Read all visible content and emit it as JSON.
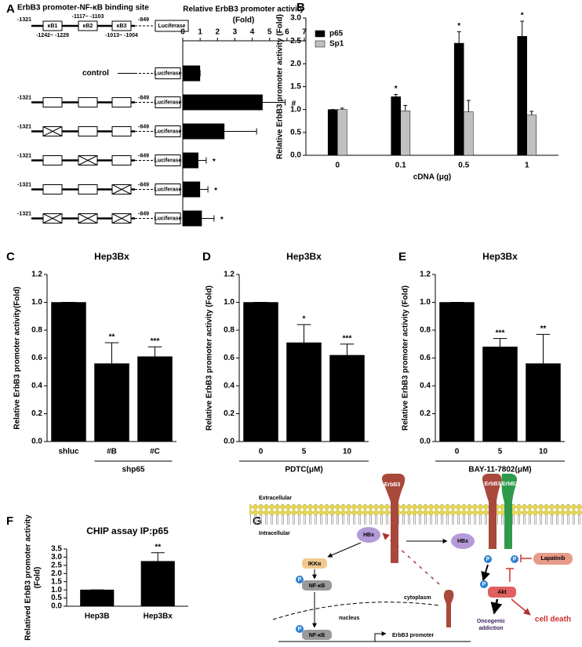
{
  "panels": [
    "A",
    "B",
    "C",
    "D",
    "E",
    "F",
    "G"
  ],
  "construct": {
    "title": "ErbB3 promoter-NF-κB binding site",
    "start": "-1321",
    "end": "-849",
    "sites": [
      "κB1",
      "κB2",
      "κB3"
    ],
    "site_ranges": [
      "-1242~ -1229",
      "-1117~ -1103",
      "-1013~ -1004"
    ],
    "reporter": "Luciferase"
  },
  "chart_data": [
    {
      "type": "hbar",
      "title": [
        "Relative ErbB3 promoter activity",
        "(Fold)"
      ],
      "categories": [
        "control",
        null,
        null,
        null,
        null,
        null
      ],
      "series": [
        {
          "color": "#000000",
          "values": [
            1.0,
            4.6,
            2.4,
            0.9,
            1.0,
            1.1
          ],
          "errors": [
            0,
            1.3,
            1.85,
            0.45,
            0.45,
            0.7
          ],
          "annotations": [
            null,
            "#",
            null,
            "*",
            "*",
            "*"
          ]
        }
      ],
      "xlim": [
        0,
        7
      ],
      "xticks": [
        0,
        1,
        2,
        3,
        4,
        5,
        6,
        7
      ]
    },
    {
      "type": "bar",
      "ylabel": [
        "Relative ErbB3 promoter activity (Fold)"
      ],
      "xlabel": "cDNA (μg)",
      "categories": [
        "0",
        "0.1",
        "0.5",
        "1"
      ],
      "series": [
        {
          "name": "p65",
          "color": "#000000",
          "values": [
            1.0,
            1.28,
            2.45,
            2.6
          ],
          "errors": [
            0,
            0.05,
            0.25,
            0.33
          ],
          "annotations": [
            null,
            "*",
            "*",
            "*"
          ]
        },
        {
          "name": "Sp1",
          "color": "#c0c0c0",
          "values": [
            1.0,
            0.97,
            0.95,
            0.88
          ],
          "errors": [
            0.03,
            0.12,
            0.25,
            0.08
          ]
        }
      ],
      "legend": "upper left",
      "ylim": [
        0,
        3
      ],
      "yticks": [
        {
          "value": 0,
          "label": "0.0"
        },
        {
          "value": 0.5,
          "label": "0.5"
        },
        {
          "value": 1,
          "label": "1.0"
        },
        {
          "value": 1.5,
          "label": "1.5"
        },
        {
          "value": 2,
          "label": "2.0"
        },
        {
          "value": 2.5,
          "label": "2.5"
        },
        {
          "value": 3,
          "label": "3.0"
        }
      ]
    },
    {
      "type": "bar",
      "title": "Hep3Bx",
      "ylabel": [
        "Relative ErbB3 promoter activity(Fold)"
      ],
      "group_label": "shp65",
      "categories": [
        "shluc",
        "#B",
        "#C"
      ],
      "series": [
        {
          "color": "#000000",
          "values": [
            1.0,
            0.56,
            0.61
          ],
          "errors": [
            0,
            0.15,
            0.07
          ],
          "annotations": [
            null,
            "**",
            "***"
          ]
        }
      ],
      "ylim": [
        0,
        1.2
      ],
      "yticks": [
        {
          "value": 0,
          "label": "0.0"
        },
        {
          "value": 0.2,
          "label": "0.2"
        },
        {
          "value": 0.4,
          "label": "0.4"
        },
        {
          "value": 0.6,
          "label": "0.6"
        },
        {
          "value": 0.8,
          "label": "0.8"
        },
        {
          "value": 1,
          "label": "1.0"
        },
        {
          "value": 1.2,
          "label": "1.2"
        }
      ]
    },
    {
      "type": "bar",
      "title": "Hep3Bx",
      "ylabel": [
        "Relative ErbB3 promoter activity (Fold)"
      ],
      "xlabel": "PDTC(μM)",
      "categories": [
        "0",
        "5",
        "10"
      ],
      "series": [
        {
          "color": "#000000",
          "values": [
            1.0,
            0.71,
            0.62
          ],
          "errors": [
            0,
            0.13,
            0.08
          ],
          "annotations": [
            null,
            "*",
            "***"
          ]
        }
      ],
      "ylim": [
        0,
        1.2
      ],
      "yticks": [
        {
          "value": 0,
          "label": "0.0"
        },
        {
          "value": 0.2,
          "label": "0.2"
        },
        {
          "value": 0.4,
          "label": "0.4"
        },
        {
          "value": 0.6,
          "label": "0.6"
        },
        {
          "value": 0.8,
          "label": "0.8"
        },
        {
          "value": 1,
          "label": "1.0"
        },
        {
          "value": 1.2,
          "label": "1.2"
        }
      ]
    },
    {
      "type": "bar",
      "title": "Hep3Bx",
      "ylabel": [
        "Relative ErbB3 promoter activity (Fold)"
      ],
      "xlabel": "BAY-11-7802(μM)",
      "categories": [
        "0",
        "5",
        "10"
      ],
      "series": [
        {
          "color": "#000000",
          "values": [
            1.0,
            0.68,
            0.56
          ],
          "errors": [
            0,
            0.06,
            0.21
          ],
          "annotations": [
            null,
            "***",
            "**"
          ]
        }
      ],
      "ylim": [
        0,
        1.2
      ],
      "yticks": [
        {
          "value": 0,
          "label": "0.0"
        },
        {
          "value": 0.2,
          "label": "0.2"
        },
        {
          "value": 0.4,
          "label": "0.4"
        },
        {
          "value": 0.6,
          "label": "0.6"
        },
        {
          "value": 0.8,
          "label": "0.8"
        },
        {
          "value": 1,
          "label": "1.0"
        },
        {
          "value": 1.2,
          "label": "1.2"
        }
      ]
    },
    {
      "type": "bar",
      "title": "CHIP assay IP:p65",
      "ylabel": [
        "Relatived ErbB3 promoter activity",
        "(Fold)"
      ],
      "categories": [
        "Hep3B",
        "Hep3Bx"
      ],
      "series": [
        {
          "color": "#000000",
          "values": [
            1.0,
            2.75
          ],
          "errors": [
            0,
            0.52
          ],
          "annotations": [
            null,
            "**"
          ]
        }
      ],
      "ylim": [
        0,
        3.5
      ],
      "yticks": [
        {
          "value": 0,
          "label": "0.0"
        },
        {
          "value": 0.5,
          "label": "0.5"
        },
        {
          "value": 1,
          "label": "1.0"
        },
        {
          "value": 1.5,
          "label": "1.5"
        },
        {
          "value": 2,
          "label": "2.0"
        },
        {
          "value": 2.5,
          "label": "2.5"
        },
        {
          "value": 3,
          "label": "3.0"
        },
        {
          "value": 3.5,
          "label": "3.5"
        }
      ]
    }
  ],
  "pathway": {
    "extracellular": "Extracellular",
    "intracellular": "Intracellular",
    "erbb3": "ErbB3",
    "erbb2": "ErbB2",
    "hbx": "HBx",
    "ikk": "IKKα",
    "nfkb": "NF-κB",
    "cytoplasm": "cytoplasm",
    "nucleus": "nucleus",
    "promoter": "ErbB3 promoter",
    "lapatinib": "Lapatinib",
    "akt": "Akt",
    "oncogenic": [
      "Oncogenic",
      "addiction"
    ],
    "cell_death": "cell death",
    "phospho": "P"
  }
}
